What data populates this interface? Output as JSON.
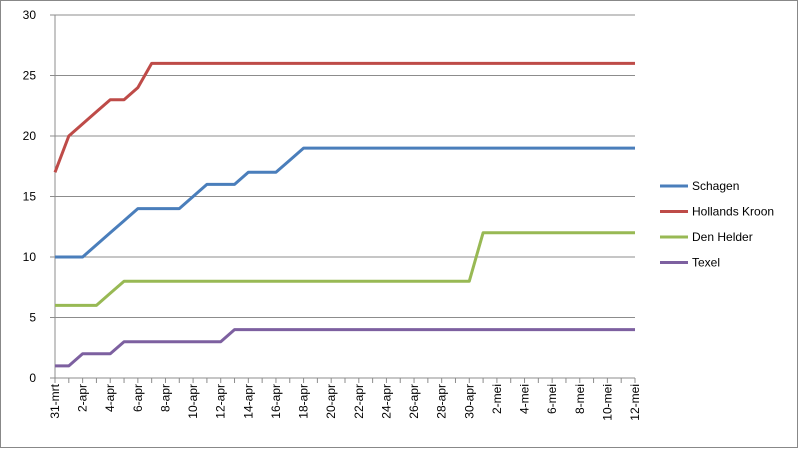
{
  "chart_data": {
    "type": "line",
    "categories": [
      "31-mrt",
      null,
      "2-apr",
      null,
      "4-apr",
      null,
      "6-apr",
      null,
      "8-apr",
      null,
      "10-apr",
      null,
      "12-apr",
      null,
      "14-apr",
      null,
      "16-apr",
      null,
      "18-apr",
      null,
      "20-apr",
      null,
      "22-apr",
      null,
      "24-apr",
      null,
      "26-apr",
      null,
      "28-apr",
      null,
      "30-apr",
      null,
      "2-mei",
      null,
      "4-mei",
      null,
      "6-mei",
      null,
      "8-mei",
      null,
      "10-mei",
      null,
      "12-mei"
    ],
    "series": [
      {
        "name": "Schagen",
        "color": "#4a7ebb",
        "values": [
          10,
          10,
          10,
          11,
          12,
          13,
          14,
          14,
          14,
          14,
          15,
          16,
          16,
          16,
          17,
          17,
          17,
          18,
          19,
          19,
          19,
          19,
          19,
          19,
          19,
          19,
          19,
          19,
          19,
          19,
          19,
          19,
          19,
          19,
          19,
          19,
          19,
          19,
          19,
          19,
          19,
          19,
          19
        ]
      },
      {
        "name": "Hollands Kroon",
        "color": "#be4b48",
        "values": [
          17,
          20,
          21,
          22,
          23,
          23,
          24,
          26,
          26,
          26,
          26,
          26,
          26,
          26,
          26,
          26,
          26,
          26,
          26,
          26,
          26,
          26,
          26,
          26,
          26,
          26,
          26,
          26,
          26,
          26,
          26,
          26,
          26,
          26,
          26,
          26,
          26,
          26,
          26,
          26,
          26,
          26,
          26
        ]
      },
      {
        "name": "Den Helder",
        "color": "#98b954",
        "values": [
          6,
          6,
          6,
          6,
          7,
          8,
          8,
          8,
          8,
          8,
          8,
          8,
          8,
          8,
          8,
          8,
          8,
          8,
          8,
          8,
          8,
          8,
          8,
          8,
          8,
          8,
          8,
          8,
          8,
          8,
          8,
          12,
          12,
          12,
          12,
          12,
          12,
          12,
          12,
          12,
          12,
          12,
          12
        ]
      },
      {
        "name": "Texel",
        "color": "#7d60a0",
        "values": [
          1,
          1,
          2,
          2,
          2,
          3,
          3,
          3,
          3,
          3,
          3,
          3,
          3,
          4,
          4,
          4,
          4,
          4,
          4,
          4,
          4,
          4,
          4,
          4,
          4,
          4,
          4,
          4,
          4,
          4,
          4,
          4,
          4,
          4,
          4,
          4,
          4,
          4,
          4,
          4,
          4,
          4,
          4
        ]
      }
    ],
    "ylim": [
      0,
      30
    ],
    "yticks": [
      0,
      5,
      10,
      15,
      20,
      25,
      30
    ],
    "grid": true,
    "legend": "right"
  }
}
